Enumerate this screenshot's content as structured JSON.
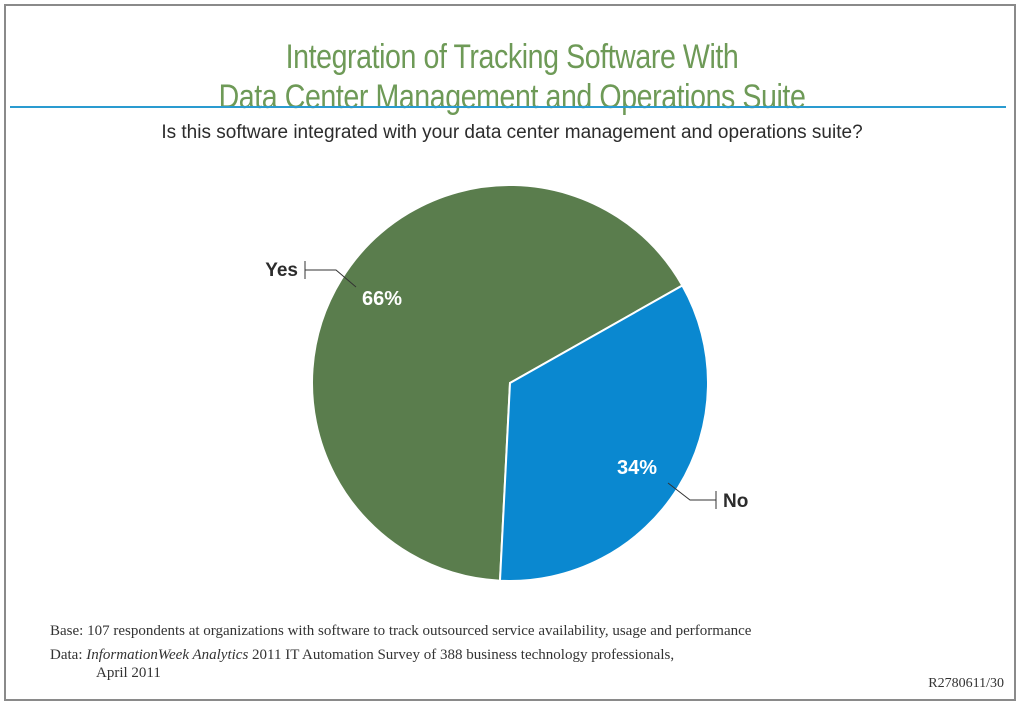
{
  "title": {
    "line1": "Integration of Tracking Software With",
    "line2": "Data Center Management and Operations Suite"
  },
  "subtitle": "Is this software integrated with your data center management and operations suite?",
  "chart_data": {
    "type": "pie",
    "title": "Integration of Tracking Software With Data Center Management and Operations Suite",
    "subtitle": "Is this software integrated with your data center management and operations suite?",
    "slices": [
      {
        "label": "Yes",
        "value": 66,
        "value_label": "66%",
        "color": "#5a7d4d"
      },
      {
        "label": "No",
        "value": 34,
        "value_label": "34%",
        "color": "#0a88d0"
      }
    ]
  },
  "footnotes": {
    "base": "Base: 107 respondents at organizations with software to track outsourced service availability, usage and performance",
    "data_prefix": "Data: ",
    "data_source_italic": "InformationWeek Analytics",
    "data_rest": " 2011 IT Automation Survey of 388 business technology professionals,",
    "data_line2": "April 2011"
  },
  "report_code": "R2780611/30",
  "colors": {
    "title": "#6e9a57",
    "rule": "#2a9bd0",
    "yes": "#5a7d4d",
    "no": "#0a88d0"
  }
}
